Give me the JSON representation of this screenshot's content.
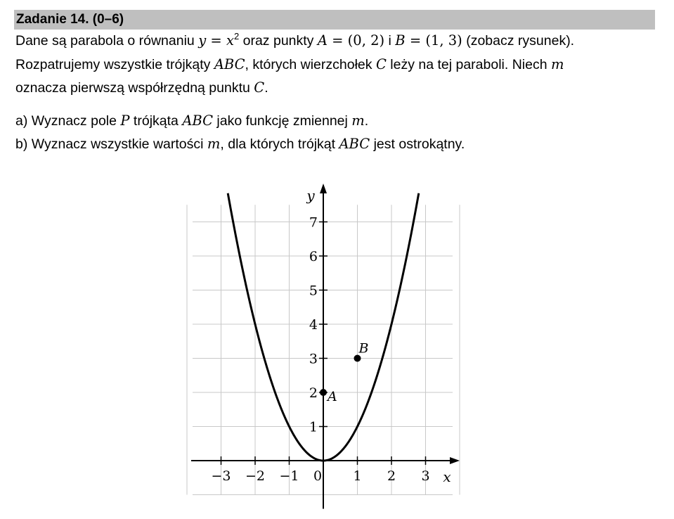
{
  "task": {
    "title": "Zadanie 14. (0–6)",
    "line1": {
      "t1": "Dane są parabola o równaniu ",
      "eq_lhs": "y",
      "eq_op": " = ",
      "eq_base": "x",
      "eq_exp": "2",
      "t2": " oraz punkty ",
      "A_name": "A",
      "A_eq": " = (0, 2)",
      "t3": " i ",
      "B_name": "B",
      "B_eq": " = (1, 3)",
      "t4": " (zobacz rysunek)."
    },
    "line2": {
      "t1": "Rozpatrujemy wszystkie trójkąty ",
      "abc": "ABC",
      "t2": ", których wierzchołek ",
      "c": "C",
      "t3": " leży na tej paraboli. Niech ",
      "m": "m"
    },
    "line3": {
      "t1": "oznacza pierwszą współrzędną punktu ",
      "c": "C",
      "t2": "."
    },
    "part_a": {
      "t1": "a) Wyznacz pole ",
      "p": "P",
      "t2": " trójkąta ",
      "abc": "ABC",
      "t3": " jako funkcję zmiennej ",
      "m": "m",
      "t4": "."
    },
    "part_b": {
      "t1": "b) Wyznacz wszystkie wartości ",
      "m": "m",
      "t2": ", dla których trójkąt ",
      "abc": "ABC",
      "t3": " jest ostrokątny."
    }
  },
  "chart_data": {
    "type": "line",
    "series": [
      {
        "name": "y = x^2",
        "x": [
          -2.8,
          -2,
          -1,
          0,
          1,
          2,
          2.8
        ],
        "y": [
          7.84,
          4,
          1,
          0,
          1,
          4,
          7.84
        ]
      }
    ],
    "points": [
      {
        "label": "A",
        "x": 0,
        "y": 2
      },
      {
        "label": "B",
        "x": 1,
        "y": 3
      }
    ],
    "xlabel": "x",
    "ylabel": "y",
    "x_ticks": [
      "−3",
      "−2",
      "−1",
      "0",
      "1",
      "2",
      "3"
    ],
    "y_ticks": [
      "1",
      "2",
      "3",
      "4",
      "5",
      "6",
      "7"
    ],
    "xlim": [
      -4,
      4
    ],
    "ylim": [
      -1,
      8
    ],
    "grid": true
  }
}
